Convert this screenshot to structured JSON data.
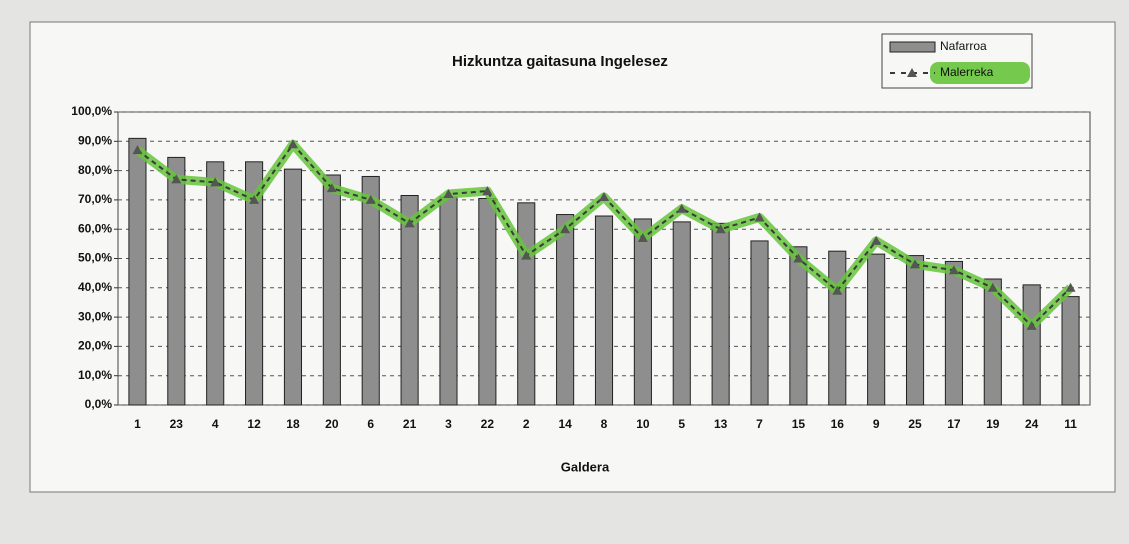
{
  "chart_data": {
    "type": "bar",
    "title": "Hizkuntza gaitasuna Ingelesez",
    "x_label": "Galdera",
    "categories": [
      "1",
      "23",
      "4",
      "12",
      "18",
      "20",
      "6",
      "21",
      "3",
      "22",
      "2",
      "14",
      "8",
      "10",
      "5",
      "13",
      "7",
      "15",
      "16",
      "9",
      "25",
      "17",
      "19",
      "24",
      "11"
    ],
    "series": [
      {
        "name": "Nafarroa",
        "type": "bar",
        "color": "#8e8e8e",
        "values": [
          91,
          84.5,
          83,
          83,
          80.5,
          78.5,
          78,
          71.5,
          71,
          70.5,
          69,
          65,
          64.5,
          63.5,
          62.5,
          62,
          56,
          54,
          52.5,
          51.5,
          51,
          49,
          43,
          41,
          37
        ]
      },
      {
        "name": "Malerreka",
        "type": "line",
        "color": "#66c43c",
        "values": [
          87,
          77,
          76,
          70,
          89,
          74,
          70,
          62,
          72,
          73,
          51,
          60,
          71,
          57,
          67,
          60,
          64,
          50,
          39,
          56,
          48,
          46,
          40,
          27,
          40
        ]
      }
    ],
    "ylim": [
      0,
      100
    ],
    "yticks": [
      {
        "value": 0,
        "label": "0,0%"
      },
      {
        "value": 10,
        "label": "10,0%"
      },
      {
        "value": 20,
        "label": "20,0%"
      },
      {
        "value": 30,
        "label": "30,0%"
      },
      {
        "value": 40,
        "label": "40,0%"
      },
      {
        "value": 50,
        "label": "50,0%"
      },
      {
        "value": 60,
        "label": "60,0%"
      },
      {
        "value": 70,
        "label": "70,0%"
      },
      {
        "value": 80,
        "label": "80,0%"
      },
      {
        "value": 90,
        "label": "90,0%"
      },
      {
        "value": 100,
        "label": "100,0%"
      }
    ],
    "grid": true,
    "legend": "top-right"
  }
}
